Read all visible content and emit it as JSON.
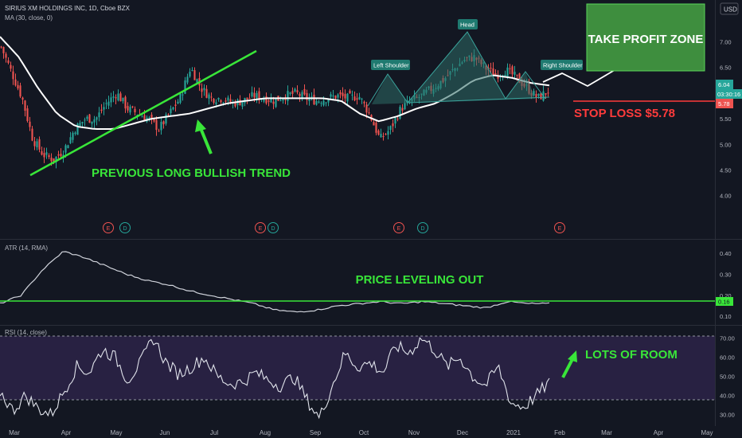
{
  "header": {
    "symbol_title": "SIRIUS XM HOLDINGS INC, 1D, Cboe BZX",
    "ma_label": "MA (30, close, 0)",
    "currency": "USD"
  },
  "annotations": {
    "take_profit": "TAKE PROFIT ZONE",
    "stop_loss": "STOP LOSS $5.78",
    "trend": "PREVIOUS LONG BULLISH TREND",
    "leveling": "PRICE LEVELING OUT",
    "room": "LOTS OF ROOM",
    "left_shoulder": "Left Shoulder",
    "head": "Head",
    "right_shoulder": "Right Shoulder"
  },
  "price_badges": {
    "last": "6.04",
    "countdown": "03:30:16",
    "stop": "5.78",
    "atr_last": "0.16"
  },
  "event_markers": [
    "E",
    "D",
    "E",
    "D",
    "E",
    "D",
    "E"
  ],
  "colors": {
    "background": "#131722",
    "up": "#26a69a",
    "down": "#ef5350",
    "ma": "#ffffff",
    "annotation_green": "#39e639",
    "stop_red": "#ff3b3b",
    "take_profit_box": "#3e8e3e",
    "pattern_fill": "#2e6b66",
    "rsi_band": "#3b2a5c"
  },
  "chart_data": [
    {
      "type": "candlestick",
      "title": "SIRIUS XM HOLDINGS INC, 1D, Cboe BZX",
      "x_ticks": [
        "Mar",
        "Apr",
        "May",
        "Jun",
        "Jul",
        "Aug",
        "Sep",
        "Oct",
        "Nov",
        "Dec",
        "2021",
        "Feb",
        "Mar",
        "Apr",
        "May"
      ],
      "y_ticks": [
        "7.00",
        "6.50",
        "6.00",
        "5.50",
        "5.00",
        "4.50",
        "4.00"
      ],
      "ylim": [
        3.7,
        7.35
      ],
      "close_path": [
        6.9,
        6.4,
        5.9,
        5.1,
        4.8,
        4.7,
        4.9,
        5.3,
        5.5,
        5.5,
        5.8,
        6.0,
        5.7,
        5.6,
        5.5,
        5.3,
        5.6,
        5.9,
        6.5,
        6.1,
        5.9,
        5.9,
        5.8,
        5.85,
        5.95,
        5.9,
        5.85,
        5.95,
        6.0,
        5.9,
        5.85,
        5.9,
        5.95,
        5.9,
        5.95,
        5.6,
        5.1,
        5.3,
        5.7,
        5.85,
        5.95,
        6.1,
        6.25,
        6.45,
        6.65,
        6.7,
        6.5,
        6.35,
        6.45,
        6.3,
        6.1,
        5.9,
        6.04
      ],
      "series": [
        {
          "name": "MA (30, close, 0)",
          "values": [
            7.1,
            6.7,
            6.1,
            5.6,
            5.35,
            5.3,
            5.3,
            5.4,
            5.5,
            5.55,
            5.6,
            5.7,
            5.8,
            5.85,
            5.9,
            5.9,
            5.9,
            5.9,
            5.85,
            5.6,
            5.45,
            5.55,
            5.7,
            5.8,
            6.0,
            6.25,
            6.35,
            6.3,
            6.2,
            6.15
          ]
        }
      ],
      "last_price": 6.04,
      "stop_loss": 5.78
    },
    {
      "type": "line",
      "title": "ATR (14, RMA)",
      "y_ticks": [
        "0.40",
        "0.30",
        "0.20",
        "0.10"
      ],
      "ylim": [
        0.07,
        0.45
      ],
      "values": [
        0.16,
        0.2,
        0.32,
        0.41,
        0.38,
        0.34,
        0.3,
        0.27,
        0.25,
        0.22,
        0.2,
        0.18,
        0.16,
        0.13,
        0.12,
        0.13,
        0.15,
        0.16,
        0.17,
        0.16,
        0.17,
        0.16,
        0.15,
        0.14,
        0.17,
        0.16,
        0.16
      ],
      "reference_line": 0.16
    },
    {
      "type": "line",
      "title": "RSI (14, close)",
      "y_ticks": [
        "70.00",
        "60.00",
        "50.00",
        "40.00",
        "30.00"
      ],
      "ylim": [
        24,
        76
      ],
      "band": [
        30,
        70
      ],
      "values": [
        42,
        32,
        40,
        33,
        30,
        42,
        55,
        52,
        64,
        60,
        48,
        57,
        70,
        57,
        51,
        55,
        60,
        50,
        46,
        47,
        52,
        48,
        45,
        50,
        38,
        28,
        45,
        62,
        55,
        57,
        52,
        66,
        62,
        70,
        64,
        55,
        60,
        50,
        45,
        55,
        36,
        34,
        40,
        47
      ]
    }
  ]
}
